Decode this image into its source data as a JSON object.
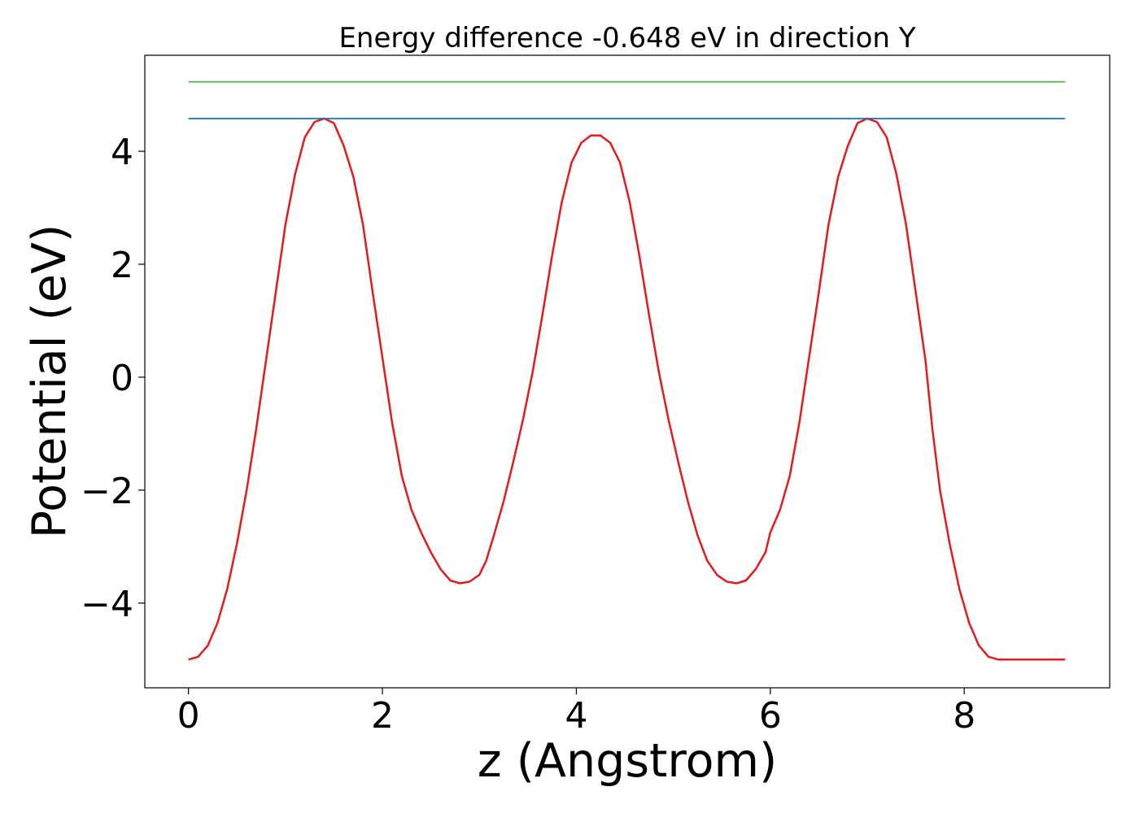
{
  "chart_data": {
    "type": "line",
    "title": "Energy difference -0.648 eV in direction Y",
    "xlabel": "z (Angstrom)",
    "ylabel": "Potential (eV)",
    "xlim": [
      -0.45,
      9.5
    ],
    "ylim": [
      -5.5,
      5.7
    ],
    "x_ticks": [
      0,
      2,
      4,
      6,
      8
    ],
    "y_ticks": [
      -4,
      -2,
      0,
      2,
      4
    ],
    "x_tick_labels": [
      "0",
      "2",
      "4",
      "6",
      "8"
    ],
    "y_tick_labels": [
      "−4",
      "−2",
      "0",
      "2",
      "4"
    ],
    "grid": false,
    "legend": "none",
    "series": [
      {
        "color": "#e41a1c",
        "x": [
          0.0,
          0.1,
          0.2,
          0.3,
          0.4,
          0.5,
          0.6,
          0.7,
          0.8,
          0.9,
          1.0,
          1.1,
          1.2,
          1.3,
          1.4,
          1.5,
          1.6,
          1.7,
          1.8,
          1.9,
          2.0,
          2.1,
          2.2,
          2.3,
          2.4,
          2.5,
          2.6,
          2.7,
          2.8,
          2.9,
          3.0,
          3.07,
          3.15,
          3.25,
          3.35,
          3.45,
          3.55,
          3.65,
          3.75,
          3.85,
          3.95,
          4.05,
          4.15,
          4.25,
          4.35,
          4.45,
          4.55,
          4.65,
          4.75,
          4.85,
          4.95,
          5.05,
          5.15,
          5.25,
          5.35,
          5.45,
          5.55,
          5.65,
          5.75,
          5.85,
          5.95,
          6.0,
          6.1,
          6.2,
          6.3,
          6.4,
          6.5,
          6.6,
          6.7,
          6.8,
          6.9,
          7.0,
          7.1,
          7.2,
          7.3,
          7.4,
          7.5,
          7.6,
          7.67,
          7.75,
          7.85,
          7.95,
          8.05,
          8.15,
          8.25,
          8.35,
          8.45,
          8.55,
          8.65,
          8.75,
          8.85,
          8.95,
          9.04
        ],
        "values": [
          -5.0,
          -4.95,
          -4.75,
          -4.35,
          -3.75,
          -2.95,
          -2.0,
          -0.9,
          0.3,
          1.5,
          2.7,
          3.6,
          4.25,
          4.52,
          4.58,
          4.5,
          4.1,
          3.55,
          2.7,
          1.5,
          0.35,
          -0.8,
          -1.75,
          -2.35,
          -2.75,
          -3.1,
          -3.4,
          -3.6,
          -3.65,
          -3.62,
          -3.5,
          -3.25,
          -2.8,
          -2.2,
          -1.5,
          -0.75,
          0.1,
          1.1,
          2.15,
          3.1,
          3.8,
          4.15,
          4.28,
          4.28,
          4.15,
          3.8,
          3.1,
          2.15,
          1.1,
          0.1,
          -0.75,
          -1.5,
          -2.2,
          -2.8,
          -3.25,
          -3.5,
          -3.62,
          -3.65,
          -3.6,
          -3.4,
          -3.1,
          -2.75,
          -2.35,
          -1.75,
          -0.8,
          0.35,
          1.5,
          2.7,
          3.55,
          4.1,
          4.5,
          4.58,
          4.52,
          4.25,
          3.6,
          2.7,
          1.5,
          0.3,
          -0.9,
          -2.0,
          -2.95,
          -3.75,
          -4.35,
          -4.75,
          -4.95,
          -5.0,
          -5.0,
          -5.0,
          -5.0,
          -5.0,
          -5.0,
          -5.0,
          -5.0
        ]
      },
      {
        "color": "#1f77b4",
        "x": [
          0,
          9.04
        ],
        "values": [
          4.58,
          4.58
        ]
      },
      {
        "color": "#4daf4a",
        "x": [
          0,
          9.04
        ],
        "values": [
          5.23,
          5.23
        ]
      }
    ]
  }
}
